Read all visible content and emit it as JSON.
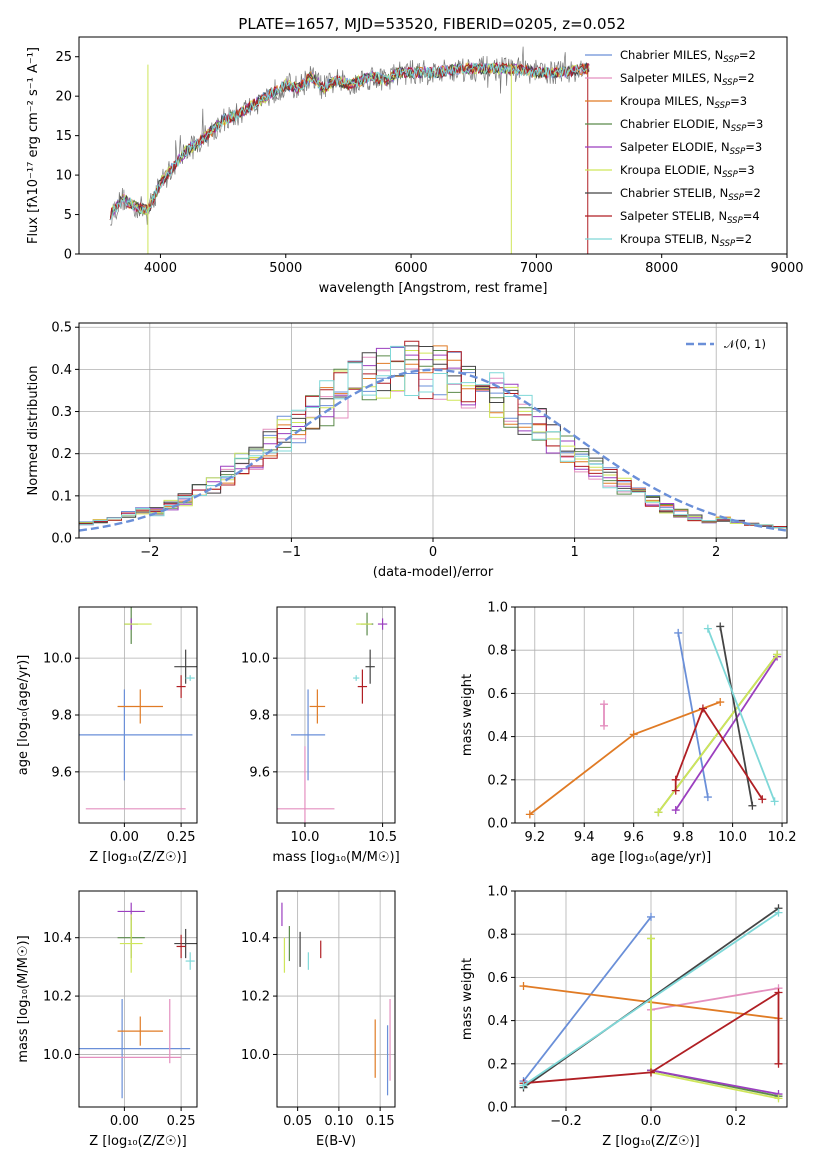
{
  "colors": {
    "Chabrier MILES": "#6a8fd8",
    "Salpeter MILES": "#e48fbf",
    "Kroupa MILES": "#e07b25",
    "Chabrier ELODIE": "#5b8a4a",
    "Salpeter ELODIE": "#9b3fbf",
    "Kroupa ELODIE": "#cfe65a",
    "Chabrier STELIB": "#444444",
    "Salpeter STELIB": "#b01f24",
    "Kroupa STELIB": "#7fd8d8"
  },
  "chart_data": [
    {
      "id": "spectrum",
      "type": "line",
      "title": "PLATE=1657, MJD=53520, FIBERID=0205, z=0.052",
      "xlabel": "wavelength [Angstrom, rest frame]",
      "ylabel": "Flux [fλ10⁻¹⁷ erg cm⁻² s⁻¹ A⁻¹]",
      "xlim": [
        3350,
        9000
      ],
      "ylim": [
        0,
        27.5
      ],
      "xticks": [
        4000,
        5000,
        6000,
        7000,
        8000,
        9000
      ],
      "yticks": [
        0,
        5,
        10,
        15,
        20,
        25
      ],
      "legend_position": "top-right",
      "legend": [
        {
          "name": "Chabrier MILES",
          "label": "Chabrier MILES, N",
          "sub": "SSP",
          "rest": "=2"
        },
        {
          "name": "Salpeter MILES",
          "label": "Salpeter MILES, N",
          "sub": "SSP",
          "rest": "=2"
        },
        {
          "name": "Kroupa MILES",
          "label": "Kroupa MILES, N",
          "sub": "SSP",
          "rest": "=3"
        },
        {
          "name": "Chabrier ELODIE",
          "label": "Chabrier ELODIE, N",
          "sub": "SSP",
          "rest": "=3"
        },
        {
          "name": "Salpeter ELODIE",
          "label": "Salpeter ELODIE, N",
          "sub": "SSP",
          "rest": "=3"
        },
        {
          "name": "Kroupa ELODIE",
          "label": "Kroupa ELODIE, N",
          "sub": "SSP",
          "rest": "=3"
        },
        {
          "name": "Chabrier STELIB",
          "label": "Chabrier STELIB, N",
          "sub": "SSP",
          "rest": "=2"
        },
        {
          "name": "Salpeter STELIB",
          "label": "Salpeter STELIB, N",
          "sub": "SSP",
          "rest": "=4"
        },
        {
          "name": "Kroupa STELIB",
          "label": "Kroupa STELIB, N",
          "sub": "SSP",
          "rest": "=2"
        }
      ],
      "continuum": {
        "x": [
          3600,
          3700,
          3800,
          3900,
          4000,
          4100,
          4200,
          4300,
          4400,
          4500,
          4600,
          4700,
          4800,
          4900,
          5000,
          5100,
          5200,
          5300,
          5400,
          5500,
          5600,
          5700,
          5800,
          5900,
          6000,
          6200,
          6400,
          6600,
          6800,
          7000,
          7200,
          7400
        ],
        "y": [
          5,
          7,
          6,
          5.5,
          9,
          11,
          13,
          14,
          15.5,
          17,
          17.5,
          18.5,
          19.5,
          20.5,
          21.5,
          21,
          22.5,
          21,
          22,
          21.5,
          22,
          22.5,
          22,
          23,
          23,
          23,
          23.5,
          23.5,
          23.5,
          23,
          23,
          23.5
        ]
      }
    },
    {
      "id": "residuals",
      "type": "line",
      "xlabel": "(data-model)/error",
      "ylabel": "Normed distribution",
      "xlim": [
        -2.5,
        2.5
      ],
      "ylim": [
        0,
        0.51
      ],
      "xticks": [
        -2,
        -1,
        0,
        1,
        2
      ],
      "yticks": [
        0.0,
        0.1,
        0.2,
        0.3,
        0.4,
        0.5
      ],
      "legend_position": "top-right",
      "legend": [
        {
          "name": "normal",
          "label": "𝒩(0, 1)"
        }
      ],
      "normal": {
        "mean": 0,
        "sigma": 1
      },
      "bin_width": 0.1
    },
    {
      "id": "age-vs-Z",
      "type": "scatter",
      "xlabel": "Z [log₁₀(Z/Z☉)]",
      "ylabel": "age  [log₁₀(age/yr)]",
      "xlim": [
        -0.2,
        0.32
      ],
      "ylim": [
        9.42,
        10.18
      ],
      "xticks": [
        0.0,
        0.25
      ],
      "yticks": [
        9.6,
        9.8,
        10.0
      ],
      "points": [
        {
          "name": "Chabrier MILES",
          "x": 0.0,
          "y": 9.73,
          "xerr": 0.3,
          "yerr": 0.16
        },
        {
          "name": "Salpeter MILES",
          "x": 0.05,
          "y": 9.47,
          "xerr": 0.22,
          "yerr": 0.0
        },
        {
          "name": "Kroupa MILES",
          "x": 0.07,
          "y": 9.83,
          "xerr": 0.1,
          "yerr": 0.06
        },
        {
          "name": "Chabrier ELODIE",
          "x": 0.03,
          "y": 10.12,
          "xerr": 0.03,
          "yerr": 0.07
        },
        {
          "name": "Salpeter ELODIE",
          "x": 0.03,
          "y": 10.12,
          "xerr": 0.0,
          "yerr": 0.02
        },
        {
          "name": "Kroupa ELODIE",
          "x": 0.06,
          "y": 10.12,
          "xerr": 0.06,
          "yerr": 0.0
        },
        {
          "name": "Chabrier STELIB",
          "x": 0.27,
          "y": 9.97,
          "xerr": 0.05,
          "yerr": 0.06
        },
        {
          "name": "Salpeter STELIB",
          "x": 0.25,
          "y": 9.9,
          "xerr": 0.02,
          "yerr": 0.04
        },
        {
          "name": "Kroupa STELIB",
          "x": 0.29,
          "y": 9.93,
          "xerr": 0.02,
          "yerr": 0.01
        }
      ]
    },
    {
      "id": "age-vs-mass",
      "type": "scatter",
      "xlabel": "mass [log₁₀(M/M☉)]",
      "ylabel": "",
      "xlim": [
        9.82,
        10.58
      ],
      "ylim": [
        9.42,
        10.18
      ],
      "xticks": [
        10.0,
        10.5
      ],
      "yticks": [
        9.6,
        9.8,
        10.0
      ],
      "points": [
        {
          "name": "Chabrier MILES",
          "x": 10.02,
          "y": 9.73,
          "xerr": 0.11,
          "yerr": 0.16
        },
        {
          "name": "Salpeter MILES",
          "x": 10.0,
          "y": 9.47,
          "xerr": 0.19,
          "yerr": 0.22
        },
        {
          "name": "Kroupa MILES",
          "x": 10.08,
          "y": 9.83,
          "xerr": 0.05,
          "yerr": 0.06
        },
        {
          "name": "Chabrier ELODIE",
          "x": 10.4,
          "y": 10.12,
          "xerr": 0.04,
          "yerr": 0.04
        },
        {
          "name": "Salpeter ELODIE",
          "x": 10.5,
          "y": 10.12,
          "xerr": 0.03,
          "yerr": 0.02
        },
        {
          "name": "Kroupa ELODIE",
          "x": 10.38,
          "y": 10.12,
          "xerr": 0.05,
          "yerr": 0.0
        },
        {
          "name": "Chabrier STELIB",
          "x": 10.42,
          "y": 9.97,
          "xerr": 0.03,
          "yerr": 0.06
        },
        {
          "name": "Salpeter STELIB",
          "x": 10.37,
          "y": 9.9,
          "xerr": 0.03,
          "yerr": 0.06
        },
        {
          "name": "Kroupa STELIB",
          "x": 10.33,
          "y": 9.93,
          "xerr": 0.02,
          "yerr": 0.01
        }
      ]
    },
    {
      "id": "mass-weight-vs-age",
      "type": "line",
      "xlabel": "age  [log₁₀(age/yr)]",
      "ylabel": "mass weight",
      "xlim": [
        9.12,
        10.22
      ],
      "ylim": [
        0,
        1
      ],
      "xticks": [
        9.2,
        9.4,
        9.6,
        9.8,
        10.0,
        10.2
      ],
      "yticks": [
        0.0,
        0.2,
        0.4,
        0.6,
        0.8,
        1.0
      ],
      "grid": true,
      "series": [
        {
          "name": "Chabrier MILES",
          "x": [
            9.78,
            9.9
          ],
          "y": [
            0.88,
            0.12
          ]
        },
        {
          "name": "Salpeter MILES",
          "x": [
            9.48,
            9.48
          ],
          "y": [
            0.55,
            0.45
          ]
        },
        {
          "name": "Kroupa MILES",
          "x": [
            9.18,
            9.6,
            9.95
          ],
          "y": [
            0.04,
            0.41,
            0.56
          ]
        },
        {
          "name": "Chabrier ELODIE",
          "x": [
            9.7,
            10.18
          ],
          "y": [
            0.05,
            0.78
          ]
        },
        {
          "name": "Salpeter ELODIE",
          "x": [
            9.77,
            10.18
          ],
          "y": [
            0.06,
            0.77
          ]
        },
        {
          "name": "Kroupa ELODIE",
          "x": [
            9.7,
            10.18
          ],
          "y": [
            0.05,
            0.78
          ]
        },
        {
          "name": "Chabrier STELIB",
          "x": [
            9.95,
            10.08
          ],
          "y": [
            0.91,
            0.08
          ]
        },
        {
          "name": "Salpeter STELIB",
          "x": [
            9.77,
            9.77,
            9.88,
            10.12
          ],
          "y": [
            0.15,
            0.2,
            0.53,
            0.11
          ]
        },
        {
          "name": "Kroupa STELIB",
          "x": [
            9.9,
            10.17
          ],
          "y": [
            0.9,
            0.1
          ]
        }
      ]
    },
    {
      "id": "mass-vs-Z",
      "type": "scatter",
      "xlabel": "Z [log₁₀(Z/Z☉)]",
      "ylabel": "mass [log₁₀(M/M☉)]",
      "xlim": [
        -0.2,
        0.32
      ],
      "ylim": [
        9.82,
        10.56
      ],
      "xticks": [
        0.0,
        0.25
      ],
      "yticks": [
        10.0,
        10.2,
        10.4
      ],
      "points": [
        {
          "name": "Chabrier MILES",
          "x": -0.01,
          "y": 10.02,
          "xerr": 0.3,
          "yerr": 0.17
        },
        {
          "name": "Salpeter MILES",
          "x": 0.0,
          "y": 9.99,
          "xerr": 0.25,
          "yerr": 0.0
        },
        {
          "name": "Kroupa MILES",
          "x": 0.07,
          "y": 10.08,
          "xerr": 0.1,
          "yerr": 0.05
        },
        {
          "name": "Salpeter MILES",
          "x": 0.2,
          "y": 10.08,
          "xerr": 0.0,
          "yerr": 0.11
        },
        {
          "name": "Chabrier ELODIE",
          "x": 0.03,
          "y": 10.4,
          "xerr": 0.06,
          "yerr": 0.07
        },
        {
          "name": "Salpeter ELODIE",
          "x": 0.03,
          "y": 10.49,
          "xerr": 0.06,
          "yerr": 0.03
        },
        {
          "name": "Kroupa ELODIE",
          "x": 0.03,
          "y": 10.38,
          "xerr": 0.05,
          "yerr": 0.1
        },
        {
          "name": "Chabrier STELIB",
          "x": 0.27,
          "y": 10.38,
          "xerr": 0.05,
          "yerr": 0.05
        },
        {
          "name": "Salpeter STELIB",
          "x": 0.25,
          "y": 10.37,
          "xerr": 0.02,
          "yerr": 0.04
        },
        {
          "name": "Kroupa STELIB",
          "x": 0.29,
          "y": 10.32,
          "xerr": 0.02,
          "yerr": 0.03
        }
      ]
    },
    {
      "id": "mass-vs-EBV",
      "type": "scatter",
      "xlabel": "E(B-V)",
      "ylabel": "",
      "xlim": [
        0.025,
        0.168
      ],
      "ylim": [
        9.82,
        10.56
      ],
      "xticks": [
        0.05,
        0.1,
        0.15
      ],
      "yticks": [
        10.0,
        10.2,
        10.4
      ],
      "points": [
        {
          "name": "Salpeter ELODIE",
          "x": 0.031,
          "y": 10.48,
          "xerr": 0,
          "yerr": 0.04
        },
        {
          "name": "Kroupa ELODIE",
          "x": 0.034,
          "y": 10.34,
          "xerr": 0,
          "yerr": 0.06
        },
        {
          "name": "Chabrier ELODIE",
          "x": 0.04,
          "y": 10.38,
          "xerr": 0,
          "yerr": 0.06
        },
        {
          "name": "Chabrier STELIB",
          "x": 0.053,
          "y": 10.36,
          "xerr": 0,
          "yerr": 0.06
        },
        {
          "name": "Kroupa STELIB",
          "x": 0.063,
          "y": 10.32,
          "xerr": 0,
          "yerr": 0.03
        },
        {
          "name": "Salpeter STELIB",
          "x": 0.078,
          "y": 10.36,
          "xerr": 0,
          "yerr": 0.03
        },
        {
          "name": "Kroupa MILES",
          "x": 0.144,
          "y": 10.02,
          "xerr": 0,
          "yerr": 0.1
        },
        {
          "name": "Chabrier MILES",
          "x": 0.159,
          "y": 9.98,
          "xerr": 0,
          "yerr": 0.12
        },
        {
          "name": "Salpeter MILES",
          "x": 0.162,
          "y": 10.05,
          "xerr": 0,
          "yerr": 0.14
        }
      ]
    },
    {
      "id": "mass-weight-vs-Z",
      "type": "line",
      "xlabel": "Z [log₁₀(Z/Z☉)]",
      "ylabel": "mass weight",
      "xlim": [
        -0.32,
        0.32
      ],
      "ylim": [
        0,
        1
      ],
      "xticks": [
        -0.2,
        0.0,
        0.2
      ],
      "yticks": [
        0.0,
        0.2,
        0.4,
        0.6,
        0.8,
        1.0
      ],
      "grid": true,
      "series": [
        {
          "name": "Chabrier MILES",
          "x": [
            -0.3,
            0.0
          ],
          "y": [
            0.12,
            0.88
          ]
        },
        {
          "name": "Salpeter MILES",
          "x": [
            0.0,
            0.3
          ],
          "y": [
            0.45,
            0.55
          ]
        },
        {
          "name": "Kroupa MILES",
          "x": [
            -0.3,
            0.3
          ],
          "y": [
            0.56,
            0.41
          ]
        },
        {
          "name": "Chabrier ELODIE",
          "x": [
            0.0,
            0.0,
            0.3
          ],
          "y": [
            0.78,
            0.17,
            0.05
          ]
        },
        {
          "name": "Salpeter ELODIE",
          "x": [
            0.0,
            0.3
          ],
          "y": [
            0.17,
            0.06
          ]
        },
        {
          "name": "Kroupa ELODIE",
          "x": [
            0.0,
            0.0,
            0.3
          ],
          "y": [
            0.78,
            0.16,
            0.04
          ]
        },
        {
          "name": "Chabrier STELIB",
          "x": [
            -0.3,
            0.3
          ],
          "y": [
            0.09,
            0.92
          ]
        },
        {
          "name": "Salpeter STELIB",
          "x": [
            -0.3,
            0.0,
            0.3,
            0.3
          ],
          "y": [
            0.11,
            0.16,
            0.53,
            0.2
          ]
        },
        {
          "name": "Kroupa STELIB",
          "x": [
            -0.3,
            0.3
          ],
          "y": [
            0.1,
            0.9
          ]
        }
      ]
    }
  ]
}
